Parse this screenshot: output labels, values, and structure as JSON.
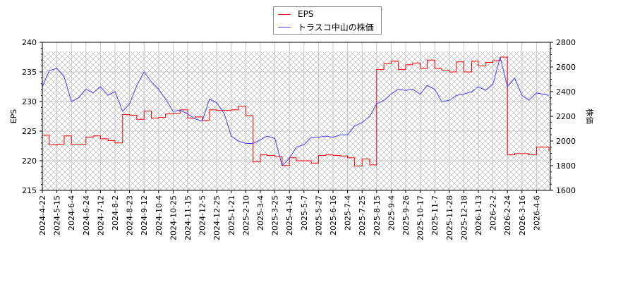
{
  "chart_data": {
    "type": "line",
    "legend_placement": "top-center",
    "grid": true,
    "ylabel_left": "EPS",
    "ylabel_right": "株価",
    "ylim_left": [
      215,
      240
    ],
    "ylim_right": [
      1600,
      2800
    ],
    "yticks_left": [
      "215",
      "220",
      "225",
      "230",
      "235",
      "240"
    ],
    "yticks_right": [
      "1600",
      "1800",
      "2000",
      "2200",
      "2400",
      "2600",
      "2800"
    ],
    "xticks": [
      "2024-4-22",
      "2024-5-15",
      "2024-6-4",
      "2024-6-24",
      "2024-7-12",
      "2024-8-2",
      "2024-8-23",
      "2024-9-12",
      "2024-10-4",
      "2024-10-25",
      "2024-11-15",
      "2024-12-5",
      "2024-12-25",
      "2025-1-21",
      "2025-2-10",
      "2025-3-4",
      "2025-3-25",
      "2025-4-14",
      "2025-5-7",
      "2025-5-27",
      "2025-6-16",
      "2025-7-4",
      "2025-7-25",
      "2025-8-15",
      "2025-9-4",
      "2025-9-26",
      "2025-10-17",
      "2025-11-7",
      "2025-11-28",
      "2025-12-18",
      "2026-1-13",
      "2026-2-2",
      "2026-2-24",
      "2026-3-16",
      "2026-4-6"
    ],
    "x": [
      "2024-04-22",
      "2024-05-03",
      "2024-05-15",
      "2024-05-25",
      "2024-06-04",
      "2024-06-14",
      "2024-06-24",
      "2024-07-03",
      "2024-07-12",
      "2024-07-23",
      "2024-08-02",
      "2024-08-13",
      "2024-08-23",
      "2024-09-02",
      "2024-09-12",
      "2024-09-23",
      "2024-10-04",
      "2024-10-14",
      "2024-10-25",
      "2024-11-04",
      "2024-11-15",
      "2024-11-25",
      "2024-12-05",
      "2024-12-15",
      "2024-12-25",
      "2025-01-08",
      "2025-01-21",
      "2025-01-31",
      "2025-02-10",
      "2025-02-21",
      "2025-03-04",
      "2025-03-14",
      "2025-03-25",
      "2025-04-04",
      "2025-04-14",
      "2025-04-25",
      "2025-05-07",
      "2025-05-17",
      "2025-05-27",
      "2025-06-06",
      "2025-06-16",
      "2025-06-25",
      "2025-07-04",
      "2025-07-14",
      "2025-07-25",
      "2025-08-05",
      "2025-08-15",
      "2025-08-25",
      "2025-09-04",
      "2025-09-15",
      "2025-09-26",
      "2025-10-06",
      "2025-10-17",
      "2025-10-27",
      "2025-11-07",
      "2025-11-17",
      "2025-11-28",
      "2025-12-08",
      "2025-12-18",
      "2026-01-01",
      "2026-01-13",
      "2026-01-23",
      "2026-02-02",
      "2026-02-13",
      "2026-02-24",
      "2026-03-06",
      "2026-03-16",
      "2026-03-26",
      "2026-04-06",
      "2026-04-24"
    ],
    "series": [
      {
        "name": "EPS",
        "axis": "left",
        "color": "#ff0000",
        "step": true,
        "values": [
          224.3,
          222.7,
          222.8,
          224.2,
          222.8,
          222.8,
          224.0,
          224.2,
          223.7,
          223.4,
          223.0,
          227.8,
          227.7,
          227.0,
          228.4,
          227.2,
          227.3,
          227.9,
          228.0,
          228.6,
          227.2,
          227.4,
          226.8,
          228.6,
          228.5,
          228.5,
          228.6,
          229.2,
          227.6,
          219.8,
          221.0,
          220.9,
          220.7,
          219.2,
          220.5,
          220.0,
          220.0,
          219.6,
          220.9,
          221.0,
          220.9,
          220.8,
          220.5,
          219.1,
          220.3,
          219.3,
          235.4,
          236.4,
          236.8,
          235.4,
          236.2,
          236.5,
          235.6,
          237.0,
          235.6,
          235.3,
          235.0,
          236.7,
          235.0,
          236.8,
          236.0,
          236.6,
          236.9,
          237.5,
          221.0,
          221.2,
          221.2,
          221.0,
          222.3,
          221.6
        ]
      },
      {
        "name": "トラスコ中山の株価",
        "axis": "right",
        "color": "#4444ff",
        "step": false,
        "values": [
          2440,
          2570,
          2590,
          2520,
          2320,
          2350,
          2420,
          2390,
          2440,
          2370,
          2400,
          2240,
          2300,
          2450,
          2560,
          2480,
          2420,
          2340,
          2240,
          2250,
          2220,
          2180,
          2160,
          2340,
          2310,
          2220,
          2040,
          2000,
          1980,
          1980,
          2010,
          2040,
          2020,
          1800,
          1860,
          1950,
          1970,
          2030,
          2030,
          2040,
          2030,
          2050,
          2050,
          2120,
          2150,
          2200,
          2300,
          2330,
          2380,
          2420,
          2410,
          2420,
          2380,
          2450,
          2420,
          2320,
          2330,
          2370,
          2380,
          2400,
          2440,
          2410,
          2460,
          2680,
          2440,
          2510,
          2370,
          2330,
          2390,
          2370
        ]
      }
    ]
  },
  "legend": {
    "items": [
      {
        "label": "EPS",
        "color": "#ff0000"
      },
      {
        "label": "トラスコ中山の株価",
        "color": "#4444ff"
      }
    ]
  }
}
